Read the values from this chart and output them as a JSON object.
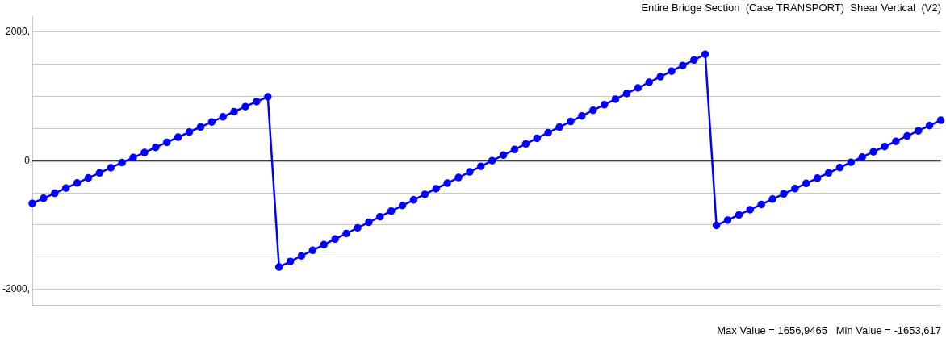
{
  "chart_data": {
    "type": "line",
    "title": "Entire Bridge Section  (Case TRANSPORT)  Shear Vertical  (V2)",
    "annotations": [
      "Max Value = 1656,9465   Min Value = -1653,617"
    ],
    "categories": [
      null,
      null,
      null,
      null,
      null,
      null,
      null,
      null,
      null,
      null,
      null,
      null,
      null,
      null,
      null,
      null,
      null,
      null,
      null,
      null,
      null,
      null,
      null,
      null,
      null,
      null,
      null,
      null,
      null,
      null,
      null,
      null,
      null,
      null,
      null,
      null,
      null,
      null,
      null,
      null,
      null,
      null,
      null,
      null,
      null,
      null,
      null,
      null,
      null,
      null,
      null,
      null,
      null,
      null,
      null,
      null,
      null,
      null,
      null,
      null,
      null,
      null,
      null,
      null,
      null,
      null,
      null,
      null,
      null,
      null,
      null,
      null,
      null,
      null,
      null,
      null,
      null,
      null,
      null,
      null,
      null,
      null
    ],
    "series": [
      {
        "color": "#0000ff",
        "values": [
          -663,
          -584,
          -505,
          -425,
          -346,
          -267,
          -188,
          -109,
          -29,
          50,
          129,
          208,
          287,
          367,
          446,
          525,
          604,
          683,
          763,
          842,
          921,
          995,
          -1654,
          -1567,
          -1480,
          -1393,
          -1306,
          -1218,
          -1131,
          -1044,
          -957,
          -870,
          -783,
          -696,
          -609,
          -522,
          -435,
          -348,
          -261,
          -173,
          -86,
          1,
          88,
          175,
          263,
          350,
          437,
          524,
          611,
          698,
          785,
          872,
          959,
          1046,
          1133,
          1221,
          1308,
          1395,
          1482,
          1569,
          1657,
          -1006,
          -924,
          -842,
          -761,
          -679,
          -597,
          -515,
          -433,
          -352,
          -270,
          -188,
          -106,
          -24,
          57,
          139,
          221,
          303,
          385,
          466,
          548,
          630
        ]
      }
    ],
    "ylim": [
      -2250,
      2250
    ],
    "yticks": [
      {
        "value": -2000,
        "label": "-2000,"
      },
      {
        "value": -1500,
        "label": null
      },
      {
        "value": -1000,
        "label": null
      },
      {
        "value": -500,
        "label": null
      },
      {
        "value": 0,
        "label": "0"
      },
      {
        "value": 500,
        "label": null
      },
      {
        "value": 1000,
        "label": null
      },
      {
        "value": 1500,
        "label": null
      },
      {
        "value": 2000,
        "label": "2000,"
      }
    ],
    "grid": "y",
    "marker": "circle",
    "line_style": "solid",
    "ref_lines": [
      {
        "axis": "y",
        "value": 0,
        "color": "#000000"
      }
    ]
  }
}
